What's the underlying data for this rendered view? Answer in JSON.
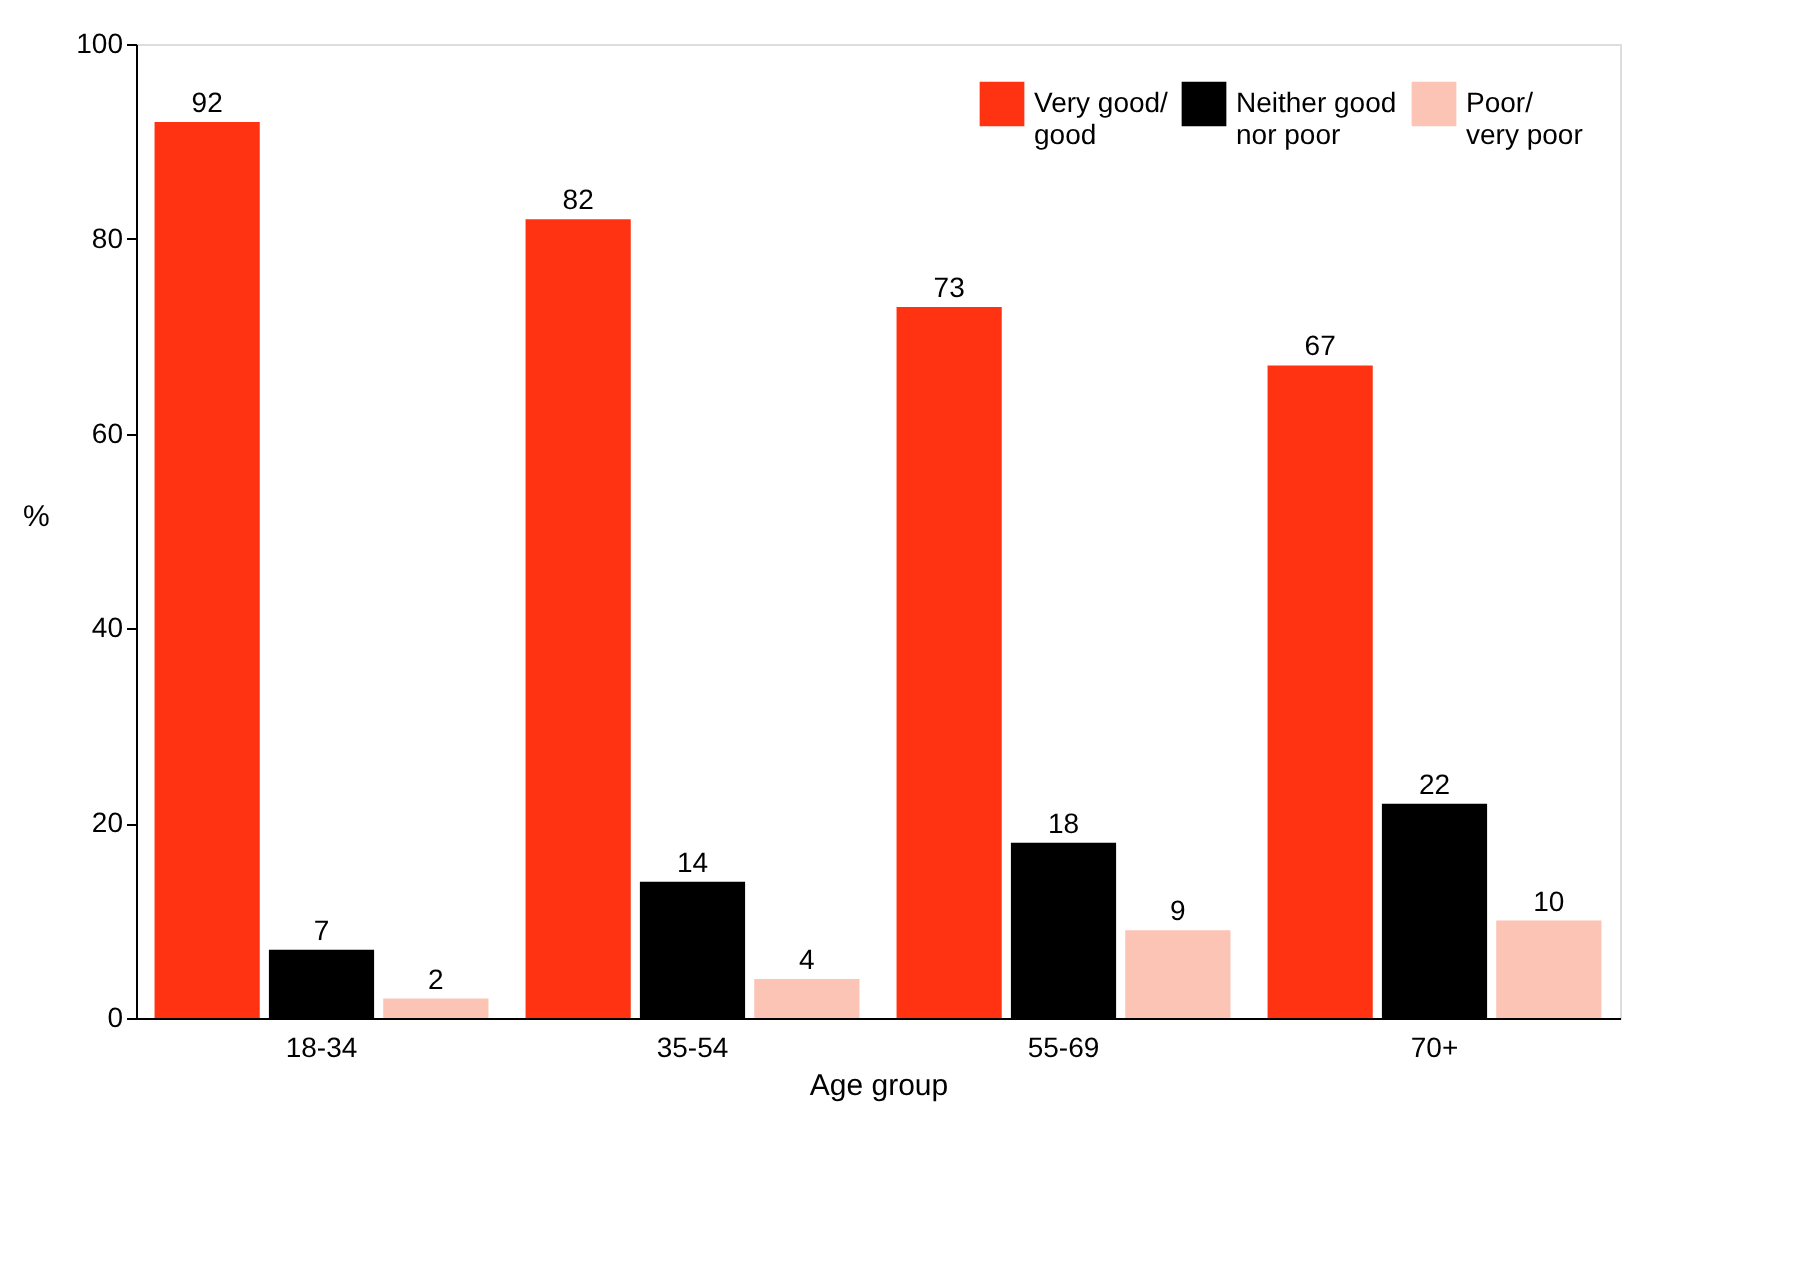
{
  "chart_data": {
    "type": "bar",
    "xlabel": "Age group",
    "ylabel": "%",
    "categories": [
      "18-34",
      "35-54",
      "55-69",
      "70+"
    ],
    "series": [
      {
        "name": "Very good/\ngood",
        "color": "#ff3311",
        "values": [
          92,
          82,
          73,
          67
        ]
      },
      {
        "name": "Neither good\nnor poor",
        "color": "#000000",
        "values": [
          7,
          14,
          18,
          22
        ]
      },
      {
        "name": "Poor/\nvery poor",
        "color": "#fcc4b4",
        "values": [
          2,
          4,
          9,
          10
        ]
      }
    ],
    "ylim": [
      0,
      100
    ],
    "yticks": [
      0,
      20,
      40,
      60,
      80,
      100
    ],
    "data_labels": true,
    "legend": "top right"
  }
}
